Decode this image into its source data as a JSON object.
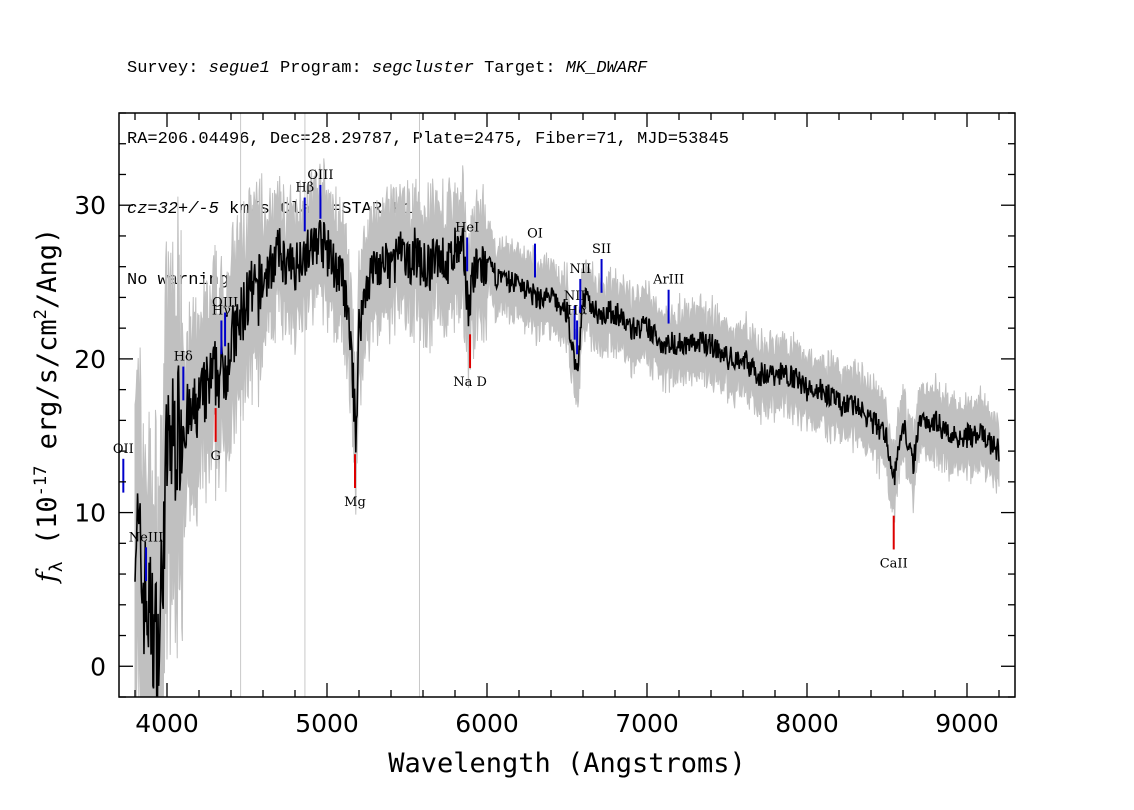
{
  "header": {
    "line1": [
      {
        "text": "Survey: ",
        "em": false
      },
      {
        "text": "segue1",
        "em": true
      },
      {
        "text": " Program: ",
        "em": false
      },
      {
        "text": "segcluster",
        "em": true
      },
      {
        "text": " Target: ",
        "em": false
      },
      {
        "text": "MK_DWARF",
        "em": true
      }
    ],
    "line2": "RA=206.04496, Dec=28.29787, Plate=2475, Fiber=71, MJD=53845",
    "line3": [
      {
        "text": "cz=32+/-5",
        "em": true
      },
      {
        "text": " km/s Class=STAR K1",
        "em": false
      }
    ],
    "line4": "No warnings."
  },
  "chart_data": {
    "type": "line",
    "xlabel": "Wavelength (Angstroms)",
    "ylabel": "f_λ (10^-17 erg/s/cm^2/Ang)",
    "xlim": [
      3700,
      9300
    ],
    "ylim": [
      -2,
      36
    ],
    "xticks": [
      4000,
      5000,
      6000,
      7000,
      8000,
      9000
    ],
    "yticks": [
      0,
      10,
      20,
      30
    ],
    "colors": {
      "flux": "#000000",
      "error": "#c0c0c0",
      "emission": "#0000cc",
      "absorption": "#dd0000",
      "guide": "#c8c8c8"
    },
    "series": [
      {
        "name": "flux",
        "x": [
          3800,
          3850,
          3900,
          3950,
          4000,
          4050,
          4100,
          4150,
          4200,
          4250,
          4300,
          4350,
          4400,
          4450,
          4500,
          4550,
          4600,
          4650,
          4700,
          4750,
          4800,
          4850,
          4900,
          4950,
          5000,
          5050,
          5100,
          5150,
          5180,
          5200,
          5250,
          5300,
          5350,
          5400,
          5450,
          5500,
          5550,
          5600,
          5650,
          5700,
          5750,
          5800,
          5850,
          5890,
          5900,
          5950,
          6000,
          6100,
          6200,
          6300,
          6400,
          6500,
          6563,
          6600,
          6700,
          6800,
          6900,
          7000,
          7100,
          7200,
          7300,
          7400,
          7500,
          7600,
          7700,
          7800,
          7900,
          8000,
          8100,
          8200,
          8300,
          8400,
          8498,
          8542,
          8600,
          8662,
          8700,
          8800,
          8900,
          9000,
          9100,
          9200
        ],
        "y": [
          10,
          5,
          3,
          1,
          14,
          15,
          16,
          16,
          17,
          18,
          19,
          19,
          21,
          22,
          24,
          24,
          25,
          26,
          27,
          26,
          26,
          27,
          27,
          28,
          27,
          26,
          25,
          21,
          15,
          22,
          25,
          26,
          26,
          26,
          27,
          26,
          27,
          26,
          26,
          27,
          26,
          27,
          27,
          23,
          25,
          26,
          26,
          25,
          25,
          24,
          24,
          23,
          19,
          24,
          23,
          23,
          22,
          22,
          21,
          21,
          21,
          21,
          20,
          20,
          19,
          19,
          19,
          18,
          18,
          17,
          17,
          16,
          15,
          12,
          16,
          13,
          16,
          16,
          15,
          15,
          15,
          14
        ]
      }
    ],
    "emission_lines": [
      {
        "label": "OII",
        "x": 3727
      },
      {
        "label": "NeIII",
        "x": 3869
      },
      {
        "label": "Hδ",
        "x": 4102
      },
      {
        "label": "Hγ",
        "x": 4340
      },
      {
        "label": "OIII",
        "x": 4363
      },
      {
        "label": "Hβ",
        "x": 4861
      },
      {
        "label": "OIII",
        "x": 4959
      },
      {
        "label": "HeI",
        "x": 5876
      },
      {
        "label": "OI",
        "x": 6300
      },
      {
        "label": "NII",
        "x": 6548
      },
      {
        "label": "Hα",
        "x": 6563
      },
      {
        "label": "NII",
        "x": 6583
      },
      {
        "label": "SII",
        "x": 6716
      },
      {
        "label": "ArIII",
        "x": 7135
      }
    ],
    "absorption_lines": [
      {
        "label": "G",
        "x": 4304
      },
      {
        "label": "Mg",
        "x": 5175
      },
      {
        "label": "Na D",
        "x": 5894
      },
      {
        "label": "CaII",
        "x": 8542
      }
    ]
  }
}
